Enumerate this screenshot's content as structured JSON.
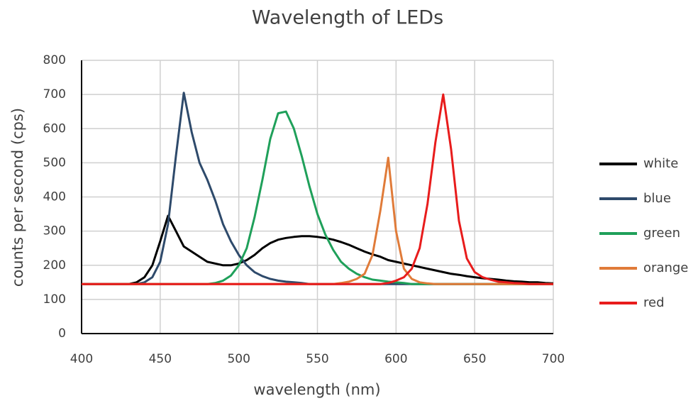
{
  "chart_data": {
    "type": "line",
    "title": "Wavelength of LEDs",
    "x_label": "wavelength (nm)",
    "y_label": "counts per second (cps)",
    "x": [
      400,
      405,
      410,
      415,
      420,
      425,
      430,
      435,
      440,
      445,
      450,
      455,
      460,
      465,
      470,
      475,
      480,
      485,
      490,
      495,
      500,
      505,
      510,
      515,
      520,
      525,
      530,
      535,
      540,
      545,
      550,
      555,
      560,
      565,
      570,
      575,
      580,
      585,
      590,
      595,
      600,
      605,
      610,
      615,
      620,
      625,
      630,
      635,
      640,
      645,
      650,
      655,
      660,
      665,
      670,
      675,
      680,
      685,
      690,
      695,
      700
    ],
    "series": [
      {
        "name": "white",
        "color": "#000000",
        "values": [
          145,
          145,
          145,
          145,
          145,
          145,
          145,
          150,
          165,
          200,
          270,
          345,
          300,
          255,
          240,
          225,
          210,
          205,
          200,
          200,
          205,
          215,
          230,
          250,
          265,
          275,
          280,
          283,
          285,
          285,
          283,
          280,
          275,
          268,
          260,
          250,
          240,
          232,
          225,
          215,
          210,
          205,
          200,
          195,
          190,
          185,
          180,
          175,
          172,
          168,
          165,
          162,
          160,
          158,
          155,
          153,
          152,
          150,
          150,
          148,
          147
        ]
      },
      {
        "name": "blue",
        "color": "#2e4a6b",
        "values": [
          145,
          145,
          145,
          145,
          145,
          145,
          145,
          145,
          150,
          165,
          210,
          320,
          520,
          705,
          590,
          500,
          450,
          390,
          320,
          270,
          230,
          200,
          180,
          168,
          160,
          155,
          152,
          150,
          148,
          145,
          145,
          145,
          145,
          145,
          145,
          145,
          145,
          145,
          145,
          145,
          145,
          145,
          145,
          145,
          145,
          145,
          145,
          145,
          145,
          145,
          145,
          145,
          145,
          145,
          145,
          145,
          145,
          145,
          145,
          145,
          145
        ]
      },
      {
        "name": "green",
        "color": "#1fa05a",
        "values": [
          145,
          145,
          145,
          145,
          145,
          145,
          145,
          145,
          145,
          145,
          145,
          145,
          145,
          145,
          145,
          145,
          145,
          148,
          155,
          170,
          200,
          250,
          340,
          450,
          570,
          645,
          650,
          600,
          520,
          430,
          350,
          290,
          245,
          210,
          190,
          175,
          165,
          158,
          155,
          152,
          150,
          148,
          145,
          145,
          145,
          145,
          145,
          145,
          145,
          145,
          145,
          145,
          145,
          145,
          145,
          145,
          145,
          145,
          145,
          145,
          145
        ]
      },
      {
        "name": "orange",
        "color": "#e07b39",
        "values": [
          145,
          145,
          145,
          145,
          145,
          145,
          145,
          145,
          145,
          145,
          145,
          145,
          145,
          145,
          145,
          145,
          145,
          145,
          145,
          145,
          145,
          145,
          145,
          145,
          145,
          145,
          145,
          145,
          145,
          145,
          145,
          145,
          145,
          148,
          152,
          160,
          175,
          230,
          360,
          515,
          300,
          190,
          160,
          150,
          147,
          145,
          145,
          145,
          145,
          145,
          145,
          145,
          145,
          145,
          145,
          145,
          145,
          145,
          145,
          145,
          145
        ]
      },
      {
        "name": "red",
        "color": "#e81c1c",
        "values": [
          145,
          145,
          145,
          145,
          145,
          145,
          145,
          145,
          145,
          145,
          145,
          145,
          145,
          145,
          145,
          145,
          145,
          145,
          145,
          145,
          145,
          145,
          145,
          145,
          145,
          145,
          145,
          145,
          145,
          145,
          145,
          145,
          145,
          145,
          145,
          145,
          145,
          145,
          145,
          148,
          155,
          165,
          190,
          250,
          380,
          560,
          700,
          540,
          330,
          220,
          180,
          165,
          158,
          152,
          150,
          148,
          147,
          145,
          145,
          145,
          145
        ]
      }
    ],
    "xlim": [
      400,
      700
    ],
    "xticks": [
      400,
      450,
      500,
      550,
      600,
      650,
      700
    ],
    "ylim": [
      0,
      800
    ],
    "yticks": [
      0,
      100,
      200,
      300,
      400,
      500,
      600,
      700,
      800
    ],
    "grid": true,
    "legend": "right"
  }
}
